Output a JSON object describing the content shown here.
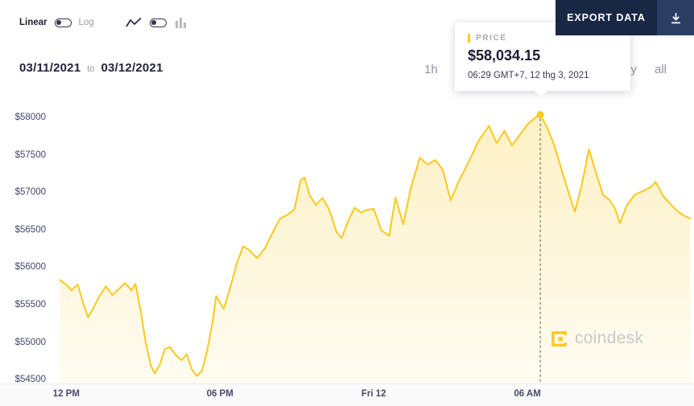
{
  "controls": {
    "linear_label": "Linear",
    "log_label": "Log",
    "icons": [
      "line-chart-icon",
      "bar-chart-icon"
    ]
  },
  "export_button": {
    "label": "EXPORT DATA",
    "icon": "download-icon"
  },
  "date_range": {
    "start": "03/11/2021",
    "separator": "to",
    "end": "03/12/2021"
  },
  "range_options": [
    "1h",
    "1y",
    "all"
  ],
  "tooltip": {
    "label": "PRICE",
    "value": "$58,034.15",
    "timestamp": "06:29 GMT+7, 12 thg 3, 2021"
  },
  "watermark": "coindesk",
  "colors": {
    "accent_yellow": "#fbc91d",
    "navy": "#182743",
    "area_fill_top": "rgba(251,201,29,0.26)",
    "area_fill_bottom": "rgba(251,201,29,0.06)",
    "axis_text": "#45456a"
  },
  "chart_data": {
    "type": "line",
    "title": "",
    "xlabel": "",
    "ylabel": "",
    "x_unit": "hours since 12 PM Mar 11, 2021",
    "xlim": [
      -0.7,
      24.5
    ],
    "ylim": [
      54450,
      58170
    ],
    "grid": false,
    "legend": false,
    "y_ticks": [
      {
        "value": 58000,
        "label": "$58000"
      },
      {
        "value": 57500,
        "label": "$57500"
      },
      {
        "value": 57000,
        "label": "$57000"
      },
      {
        "value": 56500,
        "label": "$56500"
      },
      {
        "value": 56000,
        "label": "$56000"
      },
      {
        "value": 55500,
        "label": "$55500"
      },
      {
        "value": 55000,
        "label": "$55000"
      },
      {
        "value": 54500,
        "label": "$54500"
      }
    ],
    "x_ticks": [
      {
        "value": 0,
        "label": "12 PM"
      },
      {
        "value": 6,
        "label": "06 PM"
      },
      {
        "value": 12,
        "label": "Fri 12"
      },
      {
        "value": 18,
        "label": "06 AM"
      }
    ],
    "marker": {
      "x": 18.5,
      "y": 58034.15,
      "price_label": "$58,034.15",
      "time_label": "06:29 GMT+7, 12 thg 3, 2021"
    },
    "series": [
      {
        "name": "PRICE",
        "points": [
          [
            -0.25,
            55830
          ],
          [
            0.0,
            55770
          ],
          [
            0.2,
            55690
          ],
          [
            0.45,
            55770
          ],
          [
            0.7,
            55480
          ],
          [
            0.85,
            55330
          ],
          [
            1.05,
            55450
          ],
          [
            1.3,
            55620
          ],
          [
            1.55,
            55745
          ],
          [
            1.8,
            55630
          ],
          [
            2.05,
            55710
          ],
          [
            2.3,
            55790
          ],
          [
            2.55,
            55690
          ],
          [
            2.7,
            55780
          ],
          [
            2.9,
            55430
          ],
          [
            3.1,
            55000
          ],
          [
            3.3,
            54690
          ],
          [
            3.45,
            54585
          ],
          [
            3.65,
            54700
          ],
          [
            3.85,
            54910
          ],
          [
            4.05,
            54935
          ],
          [
            4.25,
            54840
          ],
          [
            4.5,
            54760
          ],
          [
            4.7,
            54840
          ],
          [
            4.9,
            54640
          ],
          [
            5.1,
            54550
          ],
          [
            5.3,
            54620
          ],
          [
            5.5,
            54890
          ],
          [
            5.7,
            55250
          ],
          [
            5.85,
            55615
          ],
          [
            6.05,
            55500
          ],
          [
            6.15,
            55445
          ],
          [
            6.4,
            55730
          ],
          [
            6.65,
            56040
          ],
          [
            6.9,
            56280
          ],
          [
            7.15,
            56230
          ],
          [
            7.45,
            56120
          ],
          [
            7.75,
            56250
          ],
          [
            8.05,
            56460
          ],
          [
            8.35,
            56650
          ],
          [
            8.65,
            56705
          ],
          [
            8.9,
            56770
          ],
          [
            9.15,
            57160
          ],
          [
            9.3,
            57195
          ],
          [
            9.5,
            56960
          ],
          [
            9.75,
            56830
          ],
          [
            10.0,
            56925
          ],
          [
            10.25,
            56780
          ],
          [
            10.55,
            56470
          ],
          [
            10.75,
            56390
          ],
          [
            11.0,
            56615
          ],
          [
            11.25,
            56795
          ],
          [
            11.5,
            56730
          ],
          [
            11.75,
            56765
          ],
          [
            12.0,
            56780
          ],
          [
            12.3,
            56490
          ],
          [
            12.6,
            56420
          ],
          [
            12.85,
            56930
          ],
          [
            13.15,
            56570
          ],
          [
            13.45,
            57060
          ],
          [
            13.8,
            57460
          ],
          [
            14.1,
            57370
          ],
          [
            14.4,
            57430
          ],
          [
            14.7,
            57300
          ],
          [
            15.0,
            56890
          ],
          [
            15.3,
            57130
          ],
          [
            15.7,
            57400
          ],
          [
            16.1,
            57690
          ],
          [
            16.5,
            57885
          ],
          [
            16.8,
            57655
          ],
          [
            17.1,
            57820
          ],
          [
            17.4,
            57625
          ],
          [
            17.7,
            57765
          ],
          [
            18.0,
            57905
          ],
          [
            18.3,
            57995
          ],
          [
            18.5,
            58034.15
          ],
          [
            18.75,
            57880
          ],
          [
            19.05,
            57620
          ],
          [
            19.35,
            57280
          ],
          [
            19.65,
            56950
          ],
          [
            19.85,
            56740
          ],
          [
            20.1,
            57070
          ],
          [
            20.4,
            57575
          ],
          [
            20.7,
            57230
          ],
          [
            20.95,
            56965
          ],
          [
            21.2,
            56900
          ],
          [
            21.45,
            56760
          ],
          [
            21.6,
            56585
          ],
          [
            21.9,
            56840
          ],
          [
            22.2,
            56970
          ],
          [
            22.5,
            57015
          ],
          [
            22.8,
            57065
          ],
          [
            23.0,
            57140
          ],
          [
            23.3,
            56950
          ],
          [
            23.6,
            56835
          ],
          [
            23.85,
            56750
          ],
          [
            24.1,
            56690
          ],
          [
            24.35,
            56650
          ]
        ]
      }
    ]
  }
}
